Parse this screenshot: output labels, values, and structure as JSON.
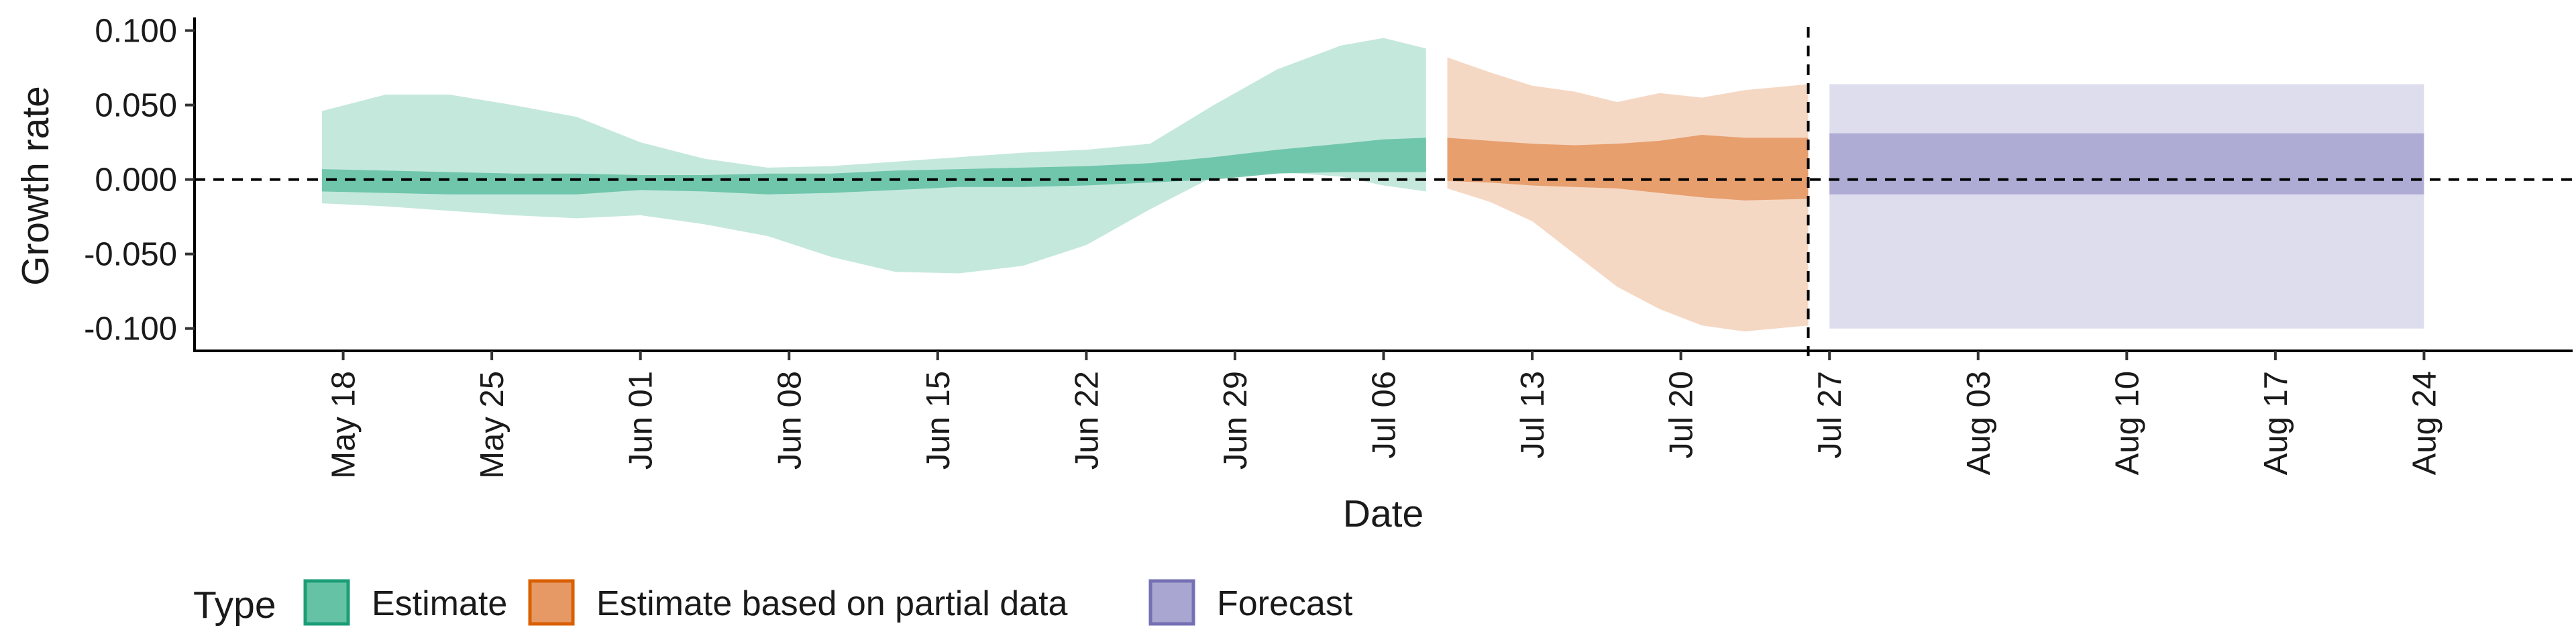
{
  "chart_data": {
    "type": "area",
    "title": "",
    "xlabel": "Date",
    "ylabel": "Growth rate",
    "x_range": [
      "2020-05-11",
      "2020-08-31"
    ],
    "ylim": [
      -0.115,
      0.107
    ],
    "y_ticks": [
      0.1,
      0.05,
      0.0,
      -0.05,
      -0.1
    ],
    "y_tick_labels": [
      "0.100",
      "0.050",
      "0.000",
      "-0.050",
      "-0.100"
    ],
    "x_ticks": [
      "2020-05-18",
      "2020-05-25",
      "2020-06-01",
      "2020-06-08",
      "2020-06-15",
      "2020-06-22",
      "2020-06-29",
      "2020-07-06",
      "2020-07-13",
      "2020-07-20",
      "2020-07-27",
      "2020-08-03",
      "2020-08-10",
      "2020-08-17",
      "2020-08-24"
    ],
    "x_tick_labels": [
      "May 18",
      "May 25",
      "Jun 01",
      "Jun 08",
      "Jun 15",
      "Jun 22",
      "Jun 29",
      "Jul 06",
      "Jul 13",
      "Jul 20",
      "Jul 27",
      "Aug 03",
      "Aug 10",
      "Aug 17",
      "Aug 24"
    ],
    "reference_lines": {
      "horizontal_y": 0.0,
      "vertical_date": "2020-07-26"
    },
    "legend": {
      "title": "Type",
      "position": "bottom-left",
      "items": [
        {
          "label": "Estimate",
          "color": "#1b9e77"
        },
        {
          "label": "Estimate based on partial data",
          "color": "#d95f02"
        },
        {
          "label": "Forecast",
          "color": "#7570b3"
        }
      ]
    },
    "series": [
      {
        "name": "Estimate",
        "color": "#1b9e77",
        "fill": "#66c2a5",
        "dates": [
          "2020-05-17",
          "2020-05-20",
          "2020-05-23",
          "2020-05-26",
          "2020-05-29",
          "2020-06-01",
          "2020-06-04",
          "2020-06-07",
          "2020-06-10",
          "2020-06-13",
          "2020-06-16",
          "2020-06-19",
          "2020-06-22",
          "2020-06-25",
          "2020-06-28",
          "2020-07-01",
          "2020-07-04",
          "2020-07-06",
          "2020-07-08"
        ],
        "lower_90": [
          -0.016,
          -0.018,
          -0.021,
          -0.024,
          -0.026,
          -0.024,
          -0.03,
          -0.038,
          -0.052,
          -0.062,
          -0.063,
          -0.058,
          -0.044,
          -0.02,
          0.002,
          0.005,
          0.002,
          -0.004,
          -0.008
        ],
        "upper_90": [
          0.046,
          0.057,
          0.057,
          0.05,
          0.042,
          0.025,
          0.014,
          0.008,
          0.009,
          0.012,
          0.015,
          0.018,
          0.02,
          0.024,
          0.05,
          0.074,
          0.09,
          0.095,
          0.088
        ],
        "lower_50": [
          -0.008,
          -0.009,
          -0.01,
          -0.01,
          -0.01,
          -0.007,
          -0.008,
          -0.01,
          -0.009,
          -0.007,
          -0.005,
          -0.005,
          -0.004,
          -0.002,
          0.0,
          0.004,
          0.005,
          0.005,
          0.005
        ],
        "upper_50": [
          0.007,
          0.006,
          0.005,
          0.004,
          0.004,
          0.003,
          0.003,
          0.004,
          0.004,
          0.006,
          0.007,
          0.008,
          0.009,
          0.011,
          0.015,
          0.02,
          0.024,
          0.027,
          0.028
        ]
      },
      {
        "name": "Estimate based on partial data",
        "color": "#d95f02",
        "fill": "#e69965",
        "dates": [
          "2020-07-09",
          "2020-07-11",
          "2020-07-13",
          "2020-07-15",
          "2020-07-17",
          "2020-07-19",
          "2020-07-21",
          "2020-07-23",
          "2020-07-26"
        ],
        "lower_90": [
          -0.006,
          -0.015,
          -0.028,
          -0.05,
          -0.072,
          -0.087,
          -0.098,
          -0.102,
          -0.098
        ],
        "upper_90": [
          0.082,
          0.072,
          0.063,
          0.059,
          0.052,
          0.058,
          0.055,
          0.06,
          0.064
        ],
        "lower_50": [
          -0.001,
          -0.002,
          -0.004,
          -0.005,
          -0.006,
          -0.009,
          -0.012,
          -0.014,
          -0.013
        ],
        "upper_50": [
          0.028,
          0.026,
          0.024,
          0.023,
          0.024,
          0.026,
          0.03,
          0.028,
          0.028
        ]
      },
      {
        "name": "Forecast",
        "color": "#7570b3",
        "fill": "#a9a6d1",
        "dates": [
          "2020-07-27",
          "2020-08-24"
        ],
        "lower_90": [
          -0.1,
          -0.1
        ],
        "upper_90": [
          0.064,
          0.064
        ],
        "lower_50": [
          -0.01,
          -0.01
        ],
        "upper_50": [
          0.031,
          0.031
        ]
      }
    ]
  }
}
